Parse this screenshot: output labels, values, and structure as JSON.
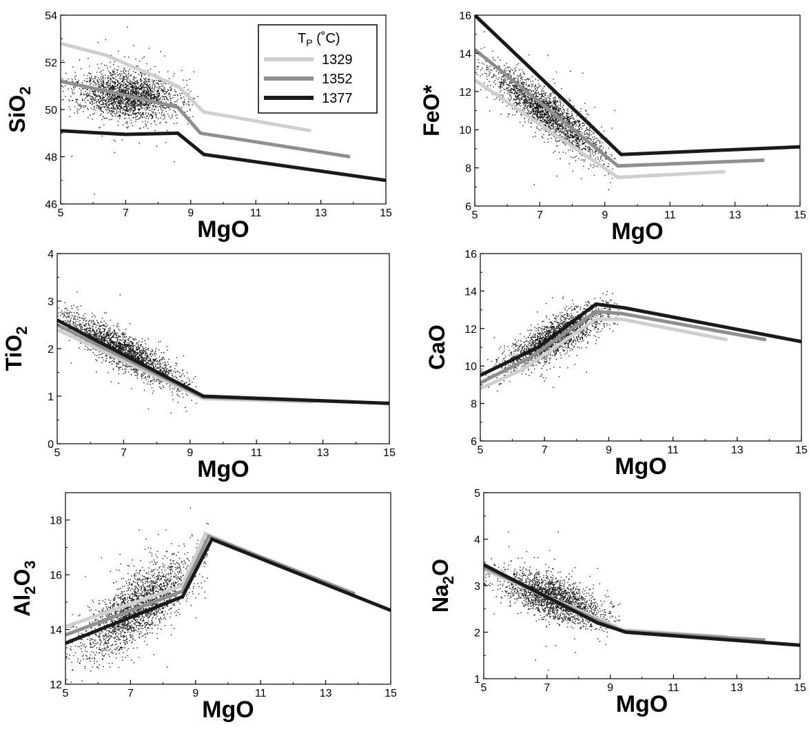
{
  "legend": {
    "title_main": "T",
    "title_sub": "P",
    "title_rest": " (˚C)",
    "entries": [
      {
        "label": "1329",
        "color": "#cfcfcf"
      },
      {
        "label": "1352",
        "color": "#8f8f8f"
      },
      {
        "label": "1377",
        "color": "#1a1a1a"
      }
    ]
  },
  "chart_data": [
    {
      "type": "line",
      "id": "sio2",
      "ylabel_parts": [
        {
          "t": "SiO"
        },
        {
          "t": "2",
          "sub": true
        }
      ],
      "xlabel": "MgO",
      "xlim": [
        5,
        15
      ],
      "ylim": [
        46,
        54
      ],
      "xticks": [
        "5",
        "7",
        "9",
        "11",
        "13",
        "15"
      ],
      "yticks": [
        "46",
        "48",
        "50",
        "52",
        "54"
      ],
      "has_legend": true,
      "scatter": {
        "n": 2200,
        "cx": 7.1,
        "cy": 50.6,
        "slope": -0.1,
        "sx": 0.8,
        "sy": 0.5,
        "xmin": 5.0,
        "xmax": 9.2
      },
      "series": [
        {
          "name": "1329",
          "color": "#cfcfcf",
          "x": [
            5.0,
            6.4,
            8.6,
            9.4,
            12.7
          ],
          "y": [
            52.8,
            52.3,
            51.0,
            49.9,
            49.1
          ]
        },
        {
          "name": "1352",
          "color": "#8f8f8f",
          "x": [
            5.0,
            7.0,
            8.6,
            9.3,
            13.9
          ],
          "y": [
            51.2,
            50.6,
            50.1,
            49.0,
            48.0
          ]
        },
        {
          "name": "1377",
          "color": "#1a1a1a",
          "x": [
            5.0,
            7.0,
            8.6,
            9.4,
            15.0
          ],
          "y": [
            49.1,
            48.95,
            49.0,
            48.1,
            47.0
          ]
        }
      ]
    },
    {
      "type": "line",
      "id": "feo",
      "ylabel_parts": [
        {
          "t": "FeO*"
        }
      ],
      "xlabel": "MgO",
      "xlim": [
        5,
        15
      ],
      "ylim": [
        6,
        16
      ],
      "xticks": [
        "5",
        "7",
        "9",
        "11",
        "13",
        "15"
      ],
      "yticks": [
        "6",
        "8",
        "10",
        "12",
        "14",
        "16"
      ],
      "has_legend": false,
      "scatter": {
        "n": 2200,
        "cx": 7.2,
        "cy": 10.9,
        "slope": -1.2,
        "sx": 0.85,
        "sy": 0.55,
        "xmin": 5.0,
        "xmax": 9.3
      },
      "series": [
        {
          "name": "1329",
          "color": "#cfcfcf",
          "x": [
            5.0,
            9.4,
            12.7
          ],
          "y": [
            12.6,
            7.5,
            7.8
          ]
        },
        {
          "name": "1352",
          "color": "#8f8f8f",
          "x": [
            5.0,
            9.4,
            13.9
          ],
          "y": [
            14.2,
            8.1,
            8.4
          ]
        },
        {
          "name": "1377",
          "color": "#1a1a1a",
          "x": [
            5.0,
            9.5,
            15.0
          ],
          "y": [
            16.0,
            8.7,
            9.1
          ]
        }
      ]
    },
    {
      "type": "line",
      "id": "tio2",
      "ylabel_parts": [
        {
          "t": "TiO"
        },
        {
          "t": "2",
          "sub": true
        }
      ],
      "xlabel": "MgO",
      "xlim": [
        5,
        15
      ],
      "ylim": [
        0,
        4
      ],
      "xticks": [
        "5",
        "7",
        "9",
        "11",
        "13",
        "15"
      ],
      "yticks": [
        "0",
        "1",
        "2",
        "3",
        "4"
      ],
      "has_legend": false,
      "scatter": {
        "n": 2200,
        "cx": 7.0,
        "cy": 1.95,
        "slope": -0.37,
        "sx": 0.85,
        "sy": 0.18,
        "xmin": 5.0,
        "xmax": 9.2
      },
      "series": [
        {
          "name": "1329",
          "color": "#cfcfcf",
          "x": [
            5.0,
            9.4,
            12.7
          ],
          "y": [
            2.4,
            0.95,
            0.88
          ]
        },
        {
          "name": "1352",
          "color": "#8f8f8f",
          "x": [
            5.0,
            9.4,
            13.9
          ],
          "y": [
            2.5,
            0.98,
            0.88
          ]
        },
        {
          "name": "1377",
          "color": "#1a1a1a",
          "x": [
            5.0,
            9.4,
            15.0
          ],
          "y": [
            2.6,
            1.0,
            0.85
          ]
        }
      ]
    },
    {
      "type": "line",
      "id": "cao",
      "ylabel_parts": [
        {
          "t": "CaO"
        }
      ],
      "xlabel": "MgO",
      "xlim": [
        5,
        15
      ],
      "ylim": [
        6,
        16
      ],
      "xticks": [
        "5",
        "7",
        "9",
        "11",
        "13",
        "15"
      ],
      "yticks": [
        "6",
        "8",
        "10",
        "12",
        "14",
        "16"
      ],
      "has_legend": false,
      "scatter": {
        "n": 2000,
        "cx": 7.3,
        "cy": 11.5,
        "slope": 0.85,
        "sx": 0.8,
        "sy": 0.5,
        "xmin": 5.0,
        "xmax": 9.3
      },
      "series": [
        {
          "name": "1329",
          "color": "#cfcfcf",
          "x": [
            5.0,
            6.3,
            8.6,
            9.4,
            12.7
          ],
          "y": [
            8.8,
            9.8,
            12.5,
            12.5,
            11.4
          ]
        },
        {
          "name": "1352",
          "color": "#8f8f8f",
          "x": [
            5.0,
            6.5,
            8.6,
            9.4,
            13.9
          ],
          "y": [
            9.1,
            10.4,
            12.9,
            12.8,
            11.4
          ]
        },
        {
          "name": "1377",
          "color": "#1a1a1a",
          "x": [
            5.0,
            6.8,
            8.6,
            9.5,
            15.0
          ],
          "y": [
            9.5,
            11.0,
            13.3,
            13.1,
            11.3
          ]
        }
      ]
    },
    {
      "type": "line",
      "id": "al2o3",
      "ylabel_parts": [
        {
          "t": "Al"
        },
        {
          "t": "2",
          "sub": true
        },
        {
          "t": "O"
        },
        {
          "t": "3",
          "sub": true
        }
      ],
      "xlabel": "MgO",
      "xlim": [
        5,
        15
      ],
      "ylim": [
        12,
        19
      ],
      "xticks": [
        "5",
        "7",
        "9",
        "11",
        "13",
        "15"
      ],
      "yticks": [
        "12",
        "14",
        "16",
        "18"
      ],
      "has_legend": false,
      "scatter": {
        "n": 2200,
        "cx": 7.2,
        "cy": 14.8,
        "slope": 0.75,
        "sx": 0.85,
        "sy": 0.6,
        "xmin": 5.0,
        "xmax": 9.4
      },
      "series": [
        {
          "name": "1329",
          "color": "#cfcfcf",
          "x": [
            5.0,
            8.6,
            9.3,
            12.7
          ],
          "y": [
            14.1,
            15.6,
            17.5,
            15.8
          ]
        },
        {
          "name": "1352",
          "color": "#8f8f8f",
          "x": [
            5.0,
            8.6,
            9.4,
            13.9
          ],
          "y": [
            13.8,
            15.4,
            17.4,
            15.3
          ]
        },
        {
          "name": "1377",
          "color": "#1a1a1a",
          "x": [
            5.0,
            8.6,
            9.5,
            15.0
          ],
          "y": [
            13.5,
            15.2,
            17.3,
            14.7
          ]
        }
      ]
    },
    {
      "type": "line",
      "id": "na2o",
      "ylabel_parts": [
        {
          "t": "Na"
        },
        {
          "t": "2",
          "sub": true
        },
        {
          "t": "O"
        }
      ],
      "xlabel": "MgO",
      "xlim": [
        5,
        15
      ],
      "ylim": [
        1,
        5
      ],
      "xticks": [
        "5",
        "7",
        "9",
        "11",
        "13",
        "15"
      ],
      "yticks": [
        "1",
        "2",
        "3",
        "4",
        "5"
      ],
      "has_legend": false,
      "scatter": {
        "n": 2000,
        "cx": 7.2,
        "cy": 2.75,
        "slope": -0.22,
        "sx": 0.8,
        "sy": 0.22,
        "xmin": 5.0,
        "xmax": 9.3
      },
      "series": [
        {
          "name": "1329",
          "color": "#cfcfcf",
          "x": [
            5.0,
            8.6,
            9.4,
            12.7
          ],
          "y": [
            3.35,
            2.3,
            2.05,
            1.9
          ]
        },
        {
          "name": "1352",
          "color": "#8f8f8f",
          "x": [
            5.0,
            8.6,
            9.4,
            13.9
          ],
          "y": [
            3.4,
            2.25,
            2.02,
            1.83
          ]
        },
        {
          "name": "1377",
          "color": "#1a1a1a",
          "x": [
            5.0,
            8.6,
            9.5,
            15.0
          ],
          "y": [
            3.45,
            2.2,
            2.0,
            1.72
          ]
        }
      ]
    }
  ]
}
